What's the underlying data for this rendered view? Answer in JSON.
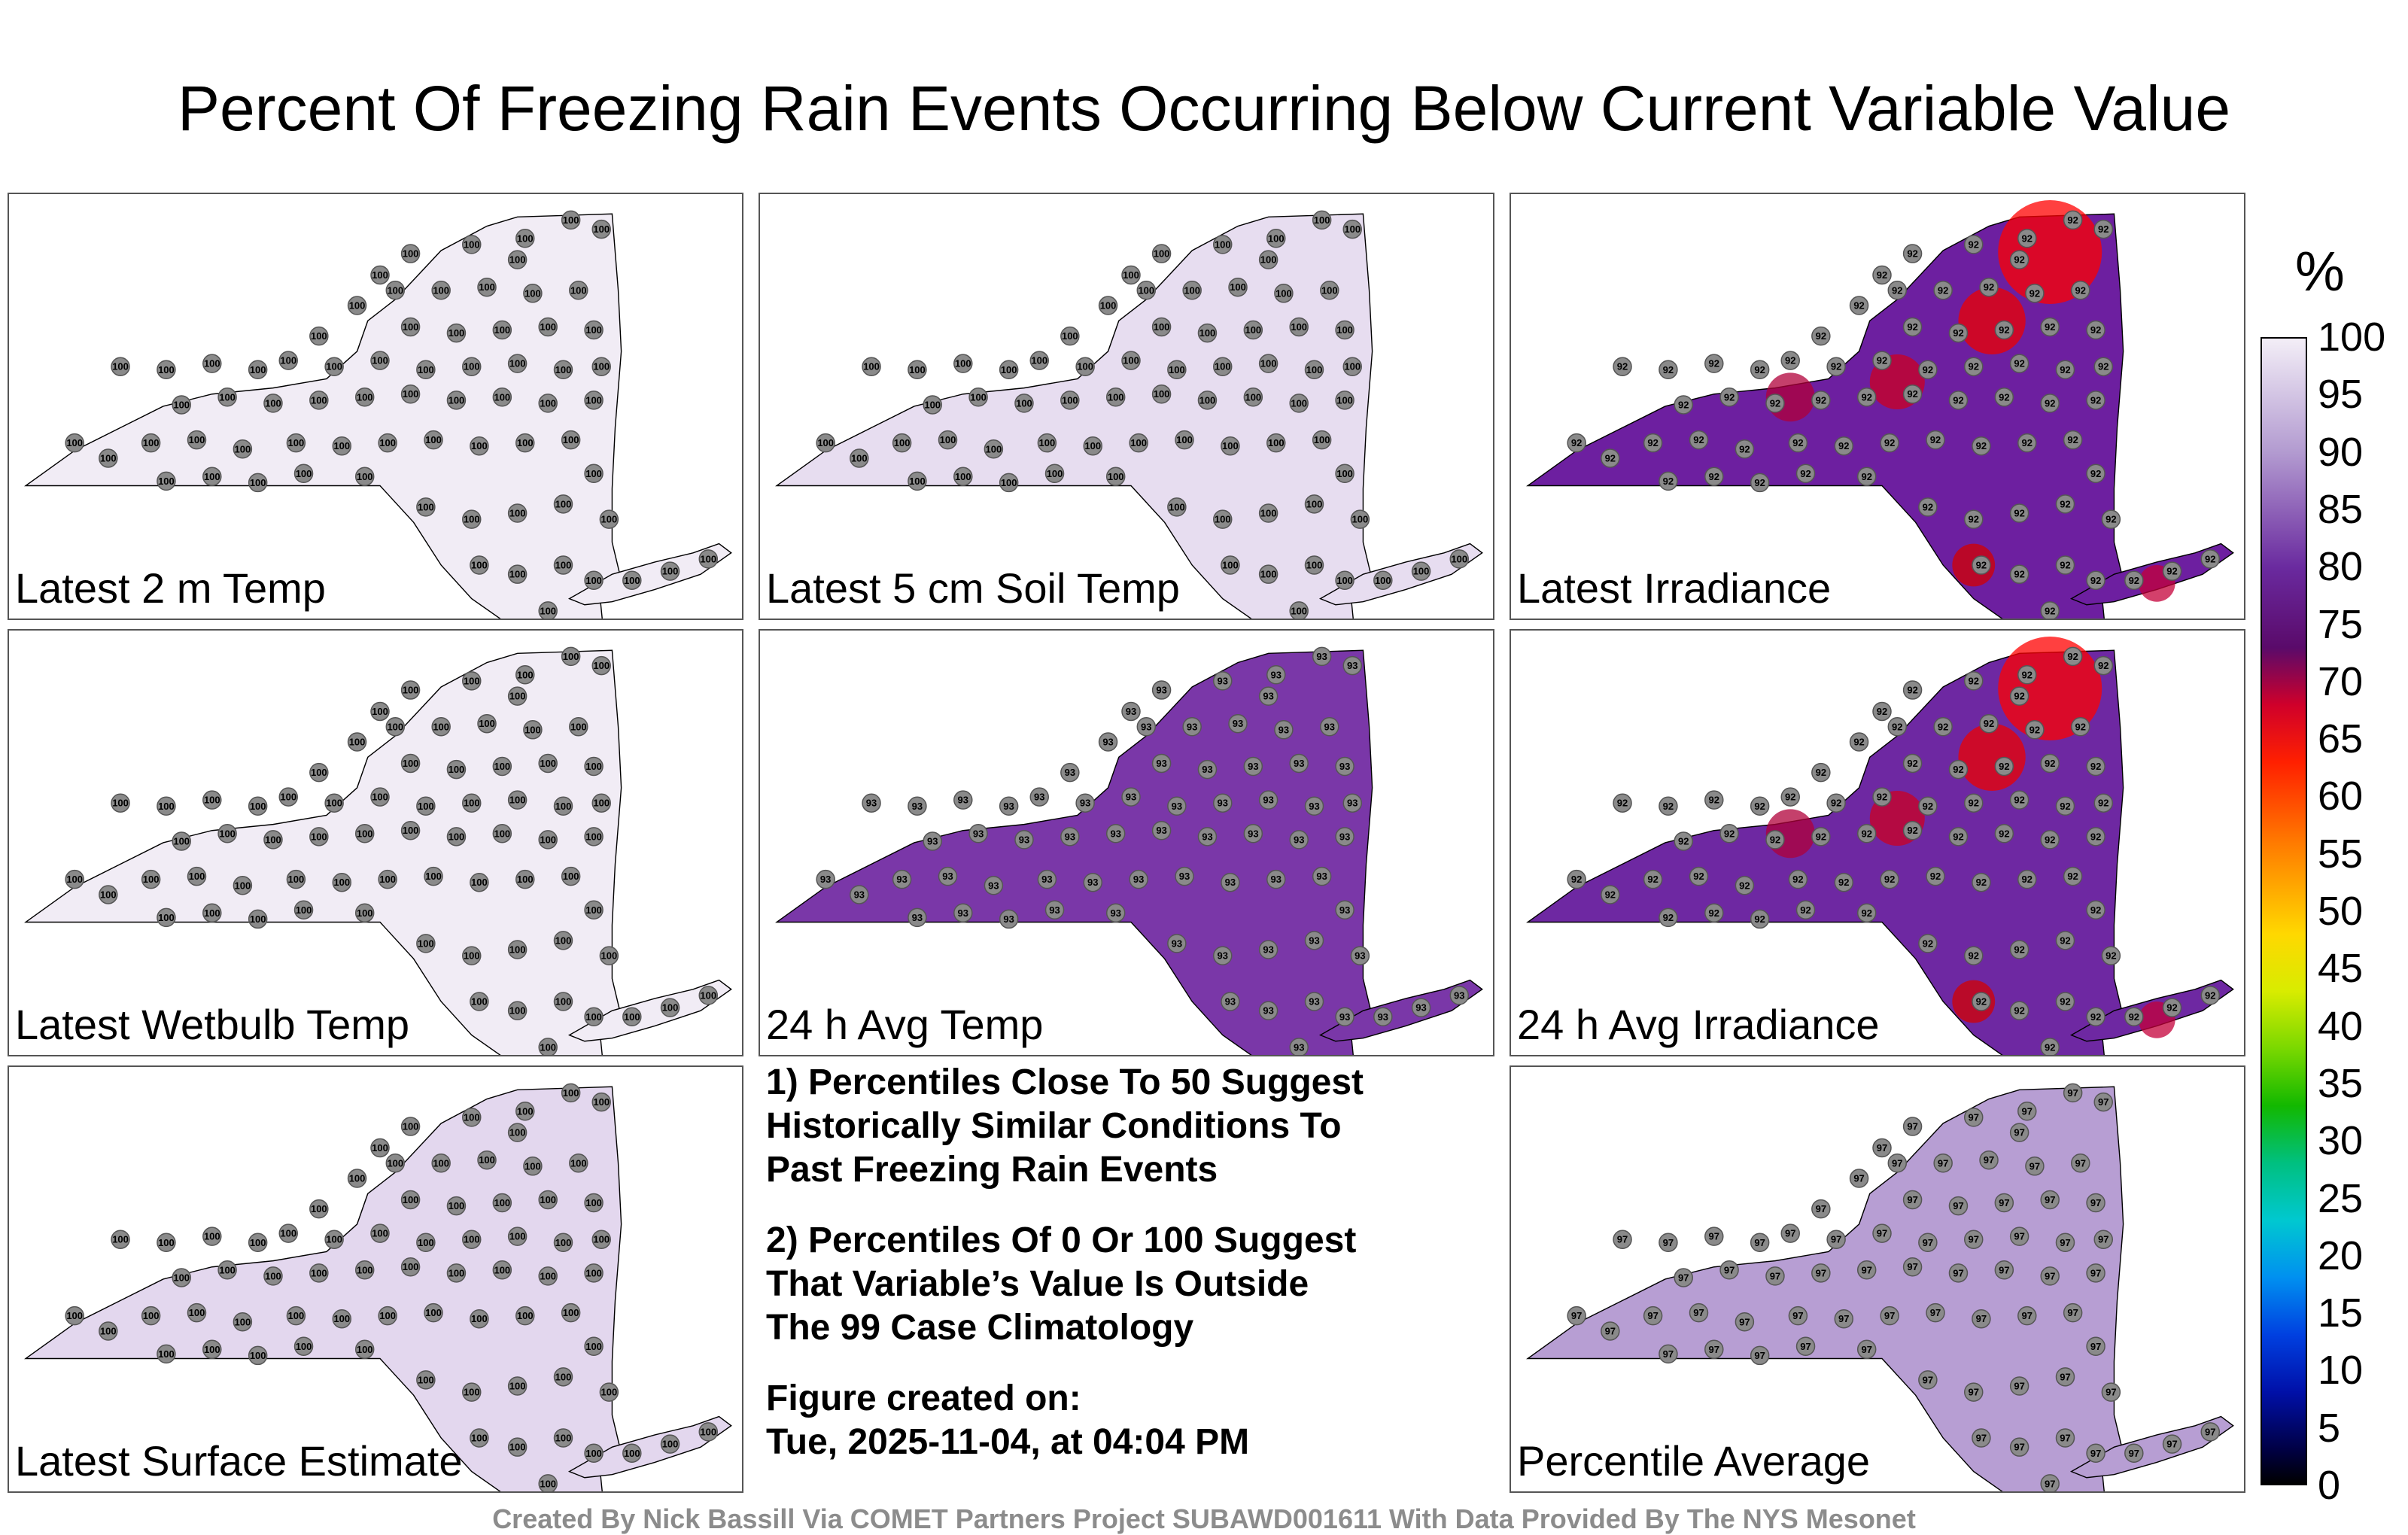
{
  "title": "Percent Of Freezing Rain Events Occurring Below Current Variable Value",
  "panels": [
    {
      "label": "Latest 2 m Temp",
      "fill": "#f1ecf5",
      "value": 100
    },
    {
      "label": "Latest 5 cm Soil Temp",
      "fill": "#e7ddf0",
      "value": 100
    },
    {
      "label": "Latest Irradiance",
      "fill": "#6d1fa0",
      "value": 92,
      "hotspots": true
    },
    {
      "label": "Latest Wetbulb Temp",
      "fill": "#f1ecf5",
      "value": 100
    },
    {
      "label": "24 h Avg Temp",
      "fill": "#7a37a8",
      "value": 93
    },
    {
      "label": "24 h Avg Irradiance",
      "fill": "#6e28a2",
      "value": 92,
      "hotspots": true
    },
    {
      "label": "Latest Surface Estimate",
      "fill": "#e3d7ee",
      "value": 100
    },
    {
      "label": "Percentile Average",
      "fill": "#b79ed3",
      "value": 97
    }
  ],
  "notes": {
    "n1": "1) Percentiles Close To 50 Suggest\nHistorically Similar Conditions To\nPast Freezing Rain Events",
    "n2": "2) Percentiles Of 0 Or 100 Suggest\nThat Variable’s Value Is Outside\nThe 99 Case Climatology",
    "created": "Figure created on:\nTue, 2025-11-04, at 04:04 PM"
  },
  "colorbar": {
    "unit": "%",
    "ticks": [
      "100",
      "95",
      "90",
      "85",
      "80",
      "75",
      "70",
      "65",
      "60",
      "55",
      "50",
      "45",
      "40",
      "35",
      "30",
      "25",
      "20",
      "15",
      "10",
      "5",
      "0"
    ]
  },
  "credit": "Created By Nick Bassill Via COMET Partners Project SUBAWD001611 With Data Provided By The NYS Mesonet"
}
